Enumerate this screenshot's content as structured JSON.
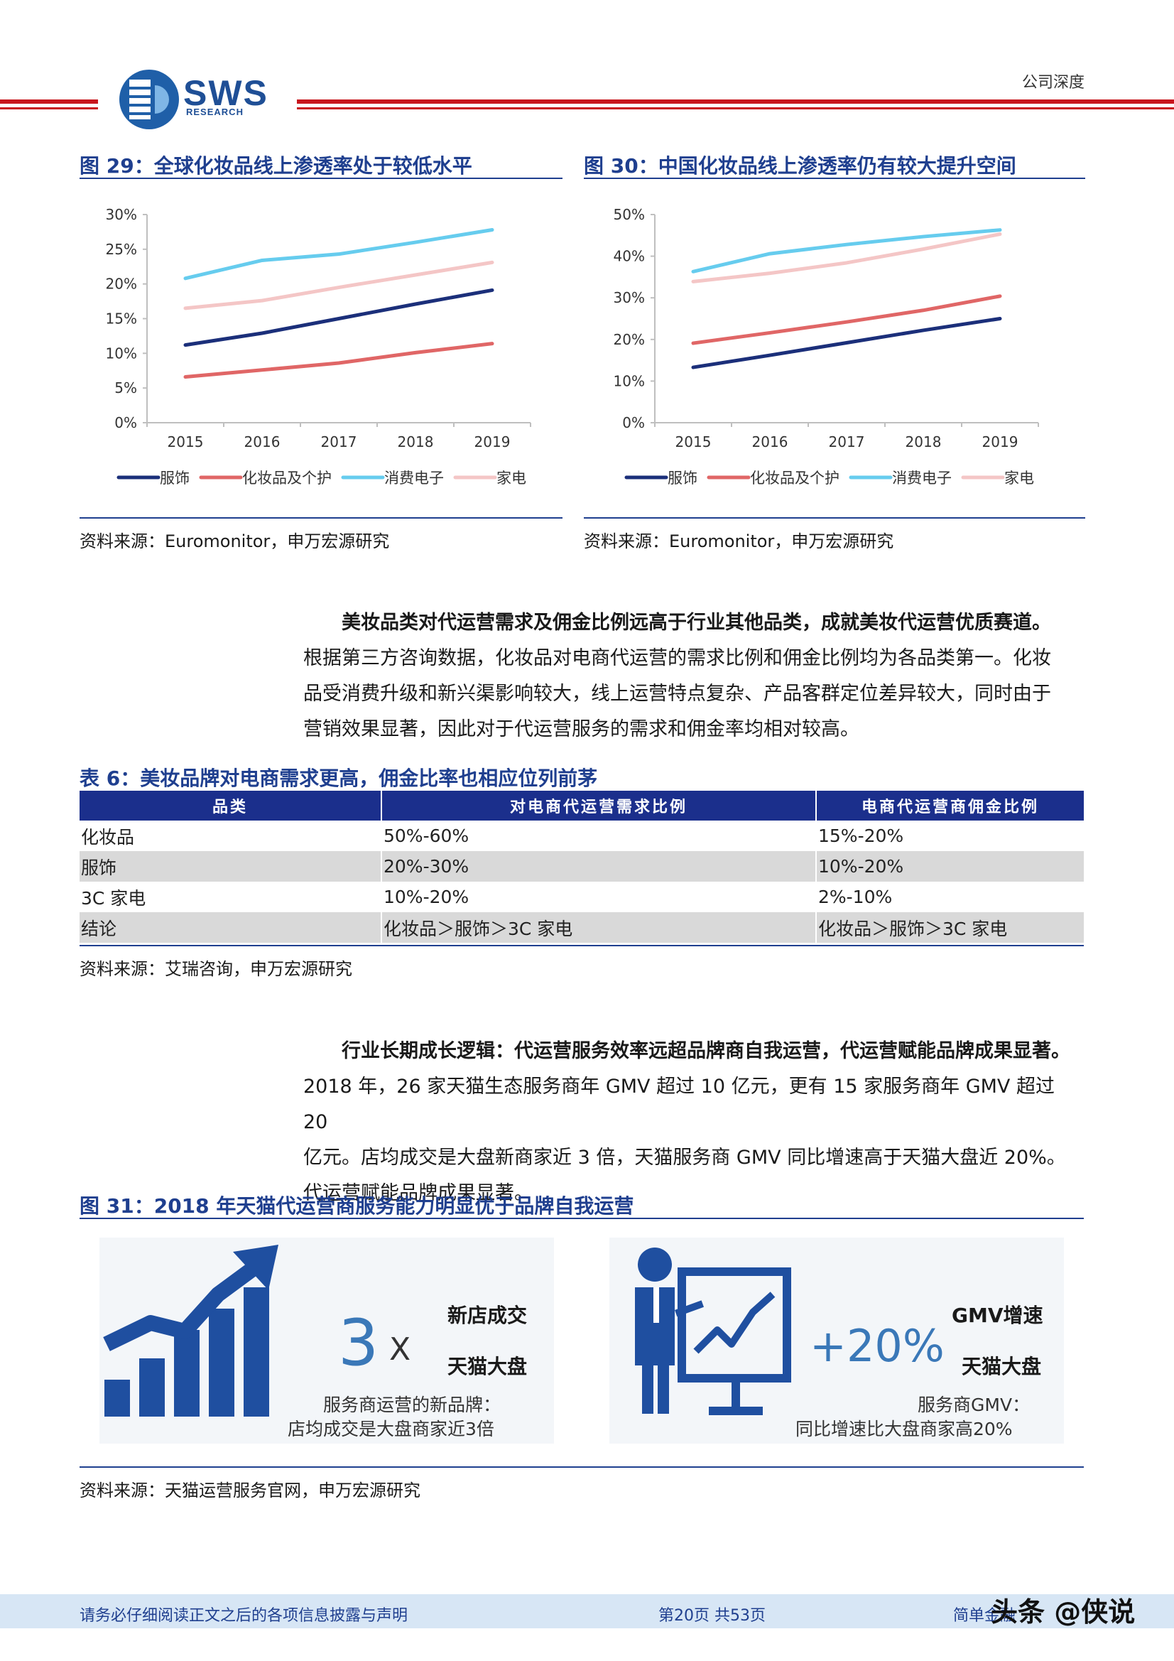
{
  "header": {
    "logo_text": "SWS",
    "logo_sub": "RESEARCH",
    "tag": "公司深度"
  },
  "fig29": {
    "title": "图 29：全球化妆品线上渗透率处于较低水平",
    "source": "资料来源：Euromonitor，申万宏源研究"
  },
  "fig30": {
    "title": "图 30：中国化妆品线上渗透率仍有较大提升空间",
    "source": "资料来源：Euromonitor，申万宏源研究"
  },
  "chart_data": [
    {
      "type": "line",
      "x": [
        "2015",
        "2016",
        "2017",
        "2018",
        "2019"
      ],
      "ylim": [
        0,
        30
      ],
      "yticks": [
        "0%",
        "5%",
        "10%",
        "15%",
        "20%",
        "25%",
        "30%"
      ],
      "grid": false,
      "legend": "bottom",
      "series": [
        {
          "name": "服饰",
          "color": "#1b2f7a",
          "values": [
            11.2,
            12.9,
            15.0,
            17.1,
            19.1
          ]
        },
        {
          "name": "化妆品及个护",
          "color": "#e06666",
          "values": [
            6.6,
            7.6,
            8.6,
            10.1,
            11.4
          ]
        },
        {
          "name": "消费电子",
          "color": "#66ccee",
          "values": [
            20.8,
            23.4,
            24.3,
            26.0,
            27.8
          ]
        },
        {
          "name": "家电",
          "color": "#f4c6c6",
          "values": [
            16.5,
            17.6,
            19.5,
            21.3,
            23.1
          ]
        }
      ]
    },
    {
      "type": "line",
      "x": [
        "2015",
        "2016",
        "2017",
        "2018",
        "2019"
      ],
      "ylim": [
        0,
        50
      ],
      "yticks": [
        "0%",
        "10%",
        "20%",
        "30%",
        "40%",
        "50%"
      ],
      "grid": false,
      "legend": "bottom",
      "series": [
        {
          "name": "服饰",
          "color": "#1b2f7a",
          "values": [
            13.3,
            16.2,
            19.2,
            22.2,
            25.0
          ]
        },
        {
          "name": "化妆品及个护",
          "color": "#e06666",
          "values": [
            19.1,
            21.6,
            24.2,
            27.0,
            30.4
          ]
        },
        {
          "name": "消费电子",
          "color": "#66ccee",
          "values": [
            36.3,
            40.6,
            42.8,
            44.7,
            46.3
          ]
        },
        {
          "name": "家电",
          "color": "#f4c6c6",
          "values": [
            33.9,
            35.9,
            38.4,
            41.7,
            45.3
          ]
        }
      ]
    }
  ],
  "para1": {
    "lead": "美妆品类对代运营需求及佣金比例远高于行业其他品类，成就美妆代运营优质赛道。",
    "line1": "根据第三方咨询数据，化妆品对电商代运营的需求比例和佣金比例均为各品类第一。化妆",
    "line2": "品受消费升级和新兴渠影响较大，线上运营特点复杂、产品客群定位差异较大，同时由于",
    "line3": "营销效果显著，因此对于代运营服务的需求和佣金率均相对较高。"
  },
  "table6": {
    "title": "表 6：美妆品牌对电商需求更高，佣金比率也相应位列前茅",
    "headers": [
      "品类",
      "对电商代运营需求比例",
      "电商代运营商佣金比例"
    ],
    "rows": [
      [
        "化妆品",
        "50%-60%",
        "15%-20%"
      ],
      [
        "服饰",
        "20%-30%",
        "10%-20%"
      ],
      [
        "3C 家电",
        "10%-20%",
        "2%-10%"
      ],
      [
        "结论",
        "化妆品＞服饰＞3C 家电",
        "化妆品＞服饰＞3C 家电"
      ]
    ],
    "source": "资料来源：艾瑞咨询，申万宏源研究"
  },
  "para2": {
    "lead": "行业长期成长逻辑：代运营服务效率远超品牌商自我运营，代运营赋能品牌成果显著。",
    "line1": "2018 年，26 家天猫生态服务商年 GMV 超过 10 亿元，更有 15 家服务商年 GMV 超过 20",
    "line2": "亿元。店均成交是大盘新商家近 3 倍，天猫服务商 GMV 同比增速高于天猫大盘近 20%。",
    "line3": "代运营赋能品牌成果显著。"
  },
  "fig31": {
    "title": "图 31：2018 年天猫代运营商服务能力明显优于品牌自我运营",
    "left": {
      "num": "3",
      "x": "X",
      "kw1": "新店成交",
      "kw2": "天猫大盘",
      "cap1": "服务商运营的新品牌：",
      "cap2": "店均成交是大盘商家近3倍"
    },
    "right": {
      "num": "+20%",
      "kw1": "GMV增速",
      "kw2": "天猫大盘",
      "cap1": "服务商GMV：",
      "cap2": "同比增速比大盘商家高20%"
    },
    "source": "资料来源：天猫运营服务官网，申万宏源研究"
  },
  "footer": {
    "disclaimer": "请务必仔细阅读正文之后的各项信息披露与声明",
    "page": "第20页  共53页",
    "right": "简单金融",
    "watermark": "头条 @侠说"
  }
}
